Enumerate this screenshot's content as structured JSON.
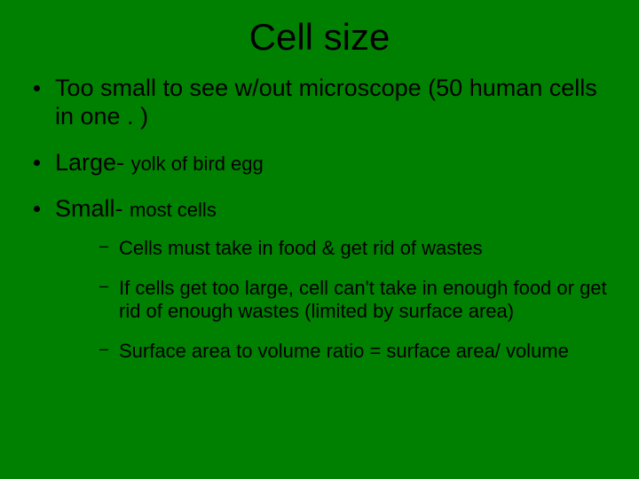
{
  "slide": {
    "background_color": "#008000",
    "text_color": "#000000",
    "font_family": "Arial",
    "title": "Cell size",
    "title_fontsize": 42,
    "bullets": [
      {
        "text": "Too small to see w/out microscope (50 human cells in one . )",
        "fontsize": 27
      },
      {
        "prefix": "Large- ",
        "suffix": "yolk of bird egg",
        "prefix_fontsize": 27,
        "suffix_fontsize": 22
      },
      {
        "prefix": "Small- ",
        "suffix": "most cells",
        "prefix_fontsize": 27,
        "suffix_fontsize": 22,
        "sub": [
          {
            "text": "Cells must take in food & get rid of wastes",
            "fontsize": 22
          },
          {
            "text": "If cells get too large, cell can't take in enough food or get rid of enough wastes (limited by surface area)",
            "fontsize": 22
          },
          {
            "text": "Surface area to volume ratio = surface area/ volume",
            "fontsize": 22
          }
        ]
      }
    ]
  }
}
